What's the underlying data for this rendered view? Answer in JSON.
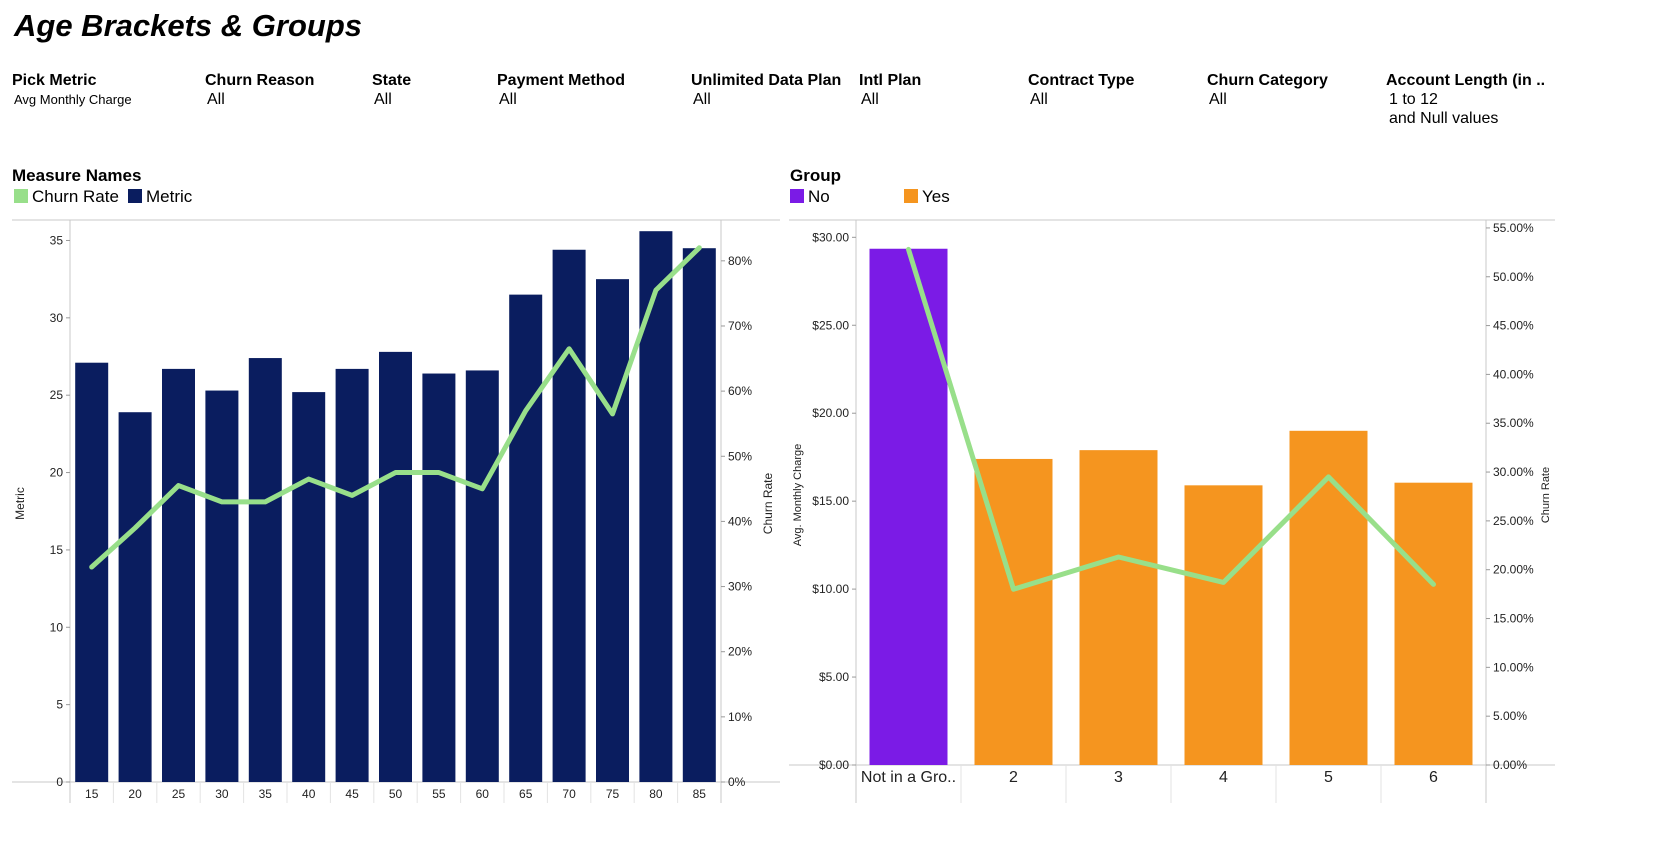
{
  "page": {
    "title": "Age Brackets & Groups"
  },
  "filters": [
    {
      "label": "Pick Metric",
      "values": [
        "Avg Monthly Charge"
      ],
      "small": true
    },
    {
      "label": "Churn Reason",
      "values": [
        "All"
      ]
    },
    {
      "label": "State",
      "values": [
        "All"
      ]
    },
    {
      "label": "Payment Method",
      "values": [
        "All"
      ]
    },
    {
      "label": "Unlimited Data Plan",
      "values": [
        "All"
      ]
    },
    {
      "label": "Intl Plan",
      "values": [
        "All"
      ]
    },
    {
      "label": "Contract Type",
      "values": [
        "All"
      ]
    },
    {
      "label": "Churn Category",
      "values": [
        "All"
      ]
    },
    {
      "label": "Account Length (in ..",
      "values": [
        "1 to 12",
        "and Null values"
      ]
    }
  ],
  "legends": [
    {
      "title": "Measure Names",
      "items": [
        {
          "label": "Churn Rate",
          "color": "#98df8a"
        },
        {
          "label": "Metric",
          "color": "#0a1d5f"
        }
      ]
    },
    {
      "title": "Group",
      "items": [
        {
          "label": "No",
          "color": "#7b1be6"
        },
        {
          "label": "Yes",
          "color": "#f5951f"
        }
      ]
    }
  ],
  "chart_data": [
    {
      "type": "bar",
      "categories": [
        "15",
        "20",
        "25",
        "30",
        "35",
        "40",
        "45",
        "50",
        "55",
        "60",
        "65",
        "70",
        "75",
        "80",
        "85"
      ],
      "series": [
        {
          "name": "Metric",
          "axis": "left",
          "mark": "bar",
          "color": "#0a1d5f",
          "values": [
            27.1,
            23.9,
            26.7,
            25.3,
            27.4,
            25.2,
            26.7,
            27.8,
            26.4,
            26.6,
            31.5,
            34.4,
            32.5,
            35.6,
            34.5
          ]
        },
        {
          "name": "Churn Rate",
          "axis": "right",
          "mark": "line",
          "color": "#98df8a",
          "values": [
            0.33,
            0.39,
            0.455,
            0.43,
            0.43,
            0.465,
            0.44,
            0.475,
            0.475,
            0.45,
            0.57,
            0.665,
            0.565,
            0.755,
            0.82
          ]
        }
      ],
      "ylabel_left": "Metric",
      "ylabel_right": "Churn Rate",
      "left_ticks": [
        "0",
        "5",
        "10",
        "15",
        "20",
        "25",
        "30",
        "35"
      ],
      "left_tick_values": [
        0,
        5,
        10,
        15,
        20,
        25,
        30,
        35
      ],
      "right_ticks": [
        "0%",
        "10%",
        "20%",
        "30%",
        "40%",
        "50%",
        "60%",
        "70%",
        "80%"
      ],
      "right_tick_values": [
        0,
        0.1,
        0.2,
        0.3,
        0.4,
        0.5,
        0.6,
        0.7,
        0.8
      ],
      "left_range": [
        0,
        36
      ],
      "right_range": [
        0,
        0.855
      ]
    },
    {
      "type": "bar",
      "categories": [
        "Not in a Gro..",
        "2",
        "3",
        "4",
        "5",
        "6"
      ],
      "bar_colors": [
        "#7b1be6",
        "#f5951f",
        "#f5951f",
        "#f5951f",
        "#f5951f",
        "#f5951f"
      ],
      "series": [
        {
          "name": "Avg. Monthly Charge",
          "axis": "left",
          "mark": "bar",
          "values": [
            29.35,
            17.4,
            17.9,
            15.9,
            19.0,
            16.05
          ]
        },
        {
          "name": "Churn Rate",
          "axis": "right",
          "mark": "line",
          "color": "#98df8a",
          "values": [
            0.528,
            0.18,
            0.213,
            0.187,
            0.295,
            0.185
          ]
        }
      ],
      "ylabel_left": "Avg. Monthly Charge",
      "ylabel_right": "Churn Rate",
      "left_ticks": [
        "$0.00",
        "$5.00",
        "$10.00",
        "$15.00",
        "$20.00",
        "$25.00",
        "$30.00"
      ],
      "left_tick_values": [
        0,
        5,
        10,
        15,
        20,
        25,
        30
      ],
      "right_ticks": [
        "0.00%",
        "5.00%",
        "10.00%",
        "15.00%",
        "20.00%",
        "25.00%",
        "30.00%",
        "35.00%",
        "40.00%",
        "45.00%",
        "50.00%",
        "55.00%"
      ],
      "right_tick_values": [
        0,
        0.05,
        0.1,
        0.15,
        0.2,
        0.25,
        0.3,
        0.35,
        0.4,
        0.45,
        0.5,
        0.55
      ],
      "left_range": [
        0,
        30.7
      ],
      "right_range": [
        0,
        0.553
      ]
    }
  ]
}
